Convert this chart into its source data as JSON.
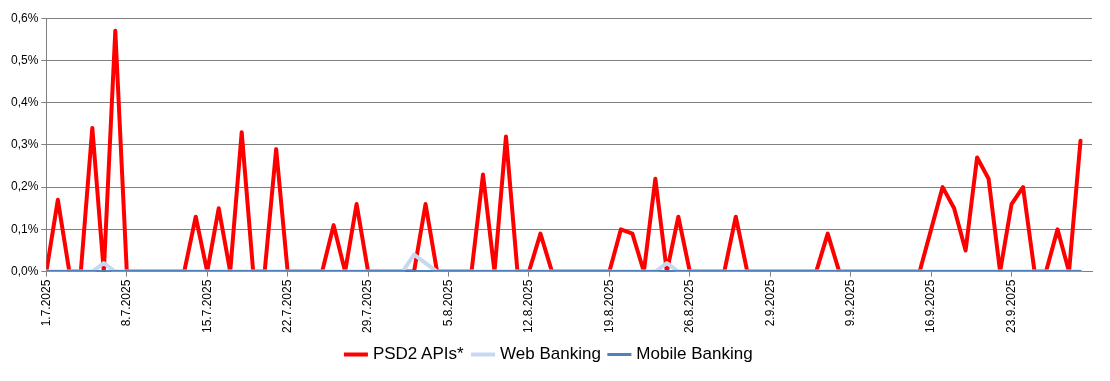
{
  "chart_data": {
    "type": "line",
    "x": [
      "2025-07-01",
      "2025-07-02",
      "2025-07-03",
      "2025-07-04",
      "2025-07-05",
      "2025-07-06",
      "2025-07-07",
      "2025-07-08",
      "2025-07-09",
      "2025-07-10",
      "2025-07-11",
      "2025-07-12",
      "2025-07-13",
      "2025-07-14",
      "2025-07-15",
      "2025-07-16",
      "2025-07-17",
      "2025-07-18",
      "2025-07-19",
      "2025-07-20",
      "2025-07-21",
      "2025-07-22",
      "2025-07-23",
      "2025-07-24",
      "2025-07-25",
      "2025-07-26",
      "2025-07-27",
      "2025-07-28",
      "2025-07-29",
      "2025-07-30",
      "2025-07-31",
      "2025-08-01",
      "2025-08-02",
      "2025-08-03",
      "2025-08-04",
      "2025-08-05",
      "2025-08-06",
      "2025-08-07",
      "2025-08-08",
      "2025-08-09",
      "2025-08-10",
      "2025-08-11",
      "2025-08-12",
      "2025-08-13",
      "2025-08-14",
      "2025-08-15",
      "2025-08-16",
      "2025-08-17",
      "2025-08-18",
      "2025-08-19",
      "2025-08-20",
      "2025-08-21",
      "2025-08-22",
      "2025-08-23",
      "2025-08-24",
      "2025-08-25",
      "2025-08-26",
      "2025-08-27",
      "2025-08-28",
      "2025-08-29",
      "2025-08-30",
      "2025-08-31",
      "2025-09-01",
      "2025-09-02",
      "2025-09-03",
      "2025-09-04",
      "2025-09-05",
      "2025-09-06",
      "2025-09-07",
      "2025-09-08",
      "2025-09-09",
      "2025-09-10",
      "2025-09-11",
      "2025-09-12",
      "2025-09-13",
      "2025-09-14",
      "2025-09-15",
      "2025-09-16",
      "2025-09-17",
      "2025-09-18",
      "2025-09-19",
      "2025-09-20",
      "2025-09-21",
      "2025-09-22",
      "2025-09-23",
      "2025-09-24",
      "2025-09-25",
      "2025-09-26",
      "2025-09-27",
      "2025-09-28",
      "2025-09-29"
    ],
    "series": [
      {
        "name": "PSD2 APIs*",
        "color": "#ff0000",
        "values": [
          0,
          0.17,
          0,
          0,
          0.34,
          0,
          0.57,
          0,
          0,
          0,
          0,
          0,
          0,
          0.13,
          0,
          0.15,
          0,
          0.33,
          0,
          0,
          0.29,
          0,
          0,
          0,
          0,
          0.11,
          0,
          0.16,
          0,
          0,
          0,
          0,
          0,
          0.16,
          0,
          0,
          0,
          0,
          0.23,
          0,
          0.32,
          0,
          0,
          0.09,
          0,
          0,
          0,
          0,
          0,
          0,
          0.1,
          0.09,
          0,
          0.22,
          0,
          0.13,
          0,
          0,
          0,
          0,
          0.13,
          0,
          0,
          0,
          0,
          0,
          0,
          0,
          0.09,
          0,
          0,
          0,
          0,
          0,
          0,
          0,
          0,
          0.1,
          0.2,
          0.15,
          0.05,
          0.27,
          0.22,
          0,
          0.16,
          0.2,
          0,
          0,
          0.1,
          0,
          0.31
        ]
      },
      {
        "name": "Web Banking",
        "color": "#c6d9f1",
        "values": [
          0,
          0,
          0,
          0,
          0,
          0.02,
          0,
          0,
          0,
          0,
          0,
          0,
          0,
          0,
          0,
          0,
          0,
          0,
          0,
          0,
          0,
          0,
          0,
          0,
          0,
          0,
          0,
          0,
          0,
          0,
          0,
          0,
          0.04,
          0.02,
          0,
          0,
          0,
          0,
          0,
          0,
          0,
          0,
          0,
          0,
          0,
          0,
          0,
          0,
          0,
          0,
          0,
          0,
          0,
          0,
          0.02,
          0,
          0,
          0,
          0,
          0,
          0,
          0,
          0,
          0,
          0,
          0,
          0,
          0,
          0,
          0,
          0,
          0,
          0,
          0,
          0,
          0,
          0,
          0,
          0,
          0,
          0,
          0,
          0,
          0,
          0,
          0,
          0,
          0,
          0,
          0,
          0
        ]
      },
      {
        "name": "Mobile Banking",
        "color": "#4f81bd",
        "values": [
          0,
          0,
          0,
          0,
          0,
          0,
          0,
          0,
          0,
          0,
          0,
          0,
          0,
          0,
          0,
          0,
          0,
          0,
          0,
          0,
          0,
          0,
          0,
          0,
          0,
          0,
          0,
          0,
          0,
          0,
          0,
          0,
          0,
          0,
          0,
          0,
          0,
          0,
          0,
          0,
          0,
          0,
          0,
          0,
          0,
          0,
          0,
          0,
          0,
          0,
          0,
          0,
          0,
          0,
          0,
          0,
          0,
          0,
          0,
          0,
          0,
          0,
          0,
          0,
          0,
          0,
          0,
          0,
          0,
          0,
          0,
          0,
          0,
          0,
          0,
          0,
          0,
          0,
          0,
          0,
          0,
          0,
          0,
          0,
          0,
          0,
          0,
          0,
          0,
          0,
          0
        ]
      }
    ],
    "xlim": [
      "2025-07-01",
      "2025-09-30"
    ],
    "xticks": [
      {
        "value": "2025-07-01",
        "label": "1.7.2025"
      },
      {
        "value": "2025-07-08",
        "label": "8.7.2025"
      },
      {
        "value": "2025-07-15",
        "label": "15.7.2025"
      },
      {
        "value": "2025-07-22",
        "label": "22.7.2025"
      },
      {
        "value": "2025-07-29",
        "label": "29.7.2025"
      },
      {
        "value": "2025-08-05",
        "label": "5.8.2025"
      },
      {
        "value": "2025-08-12",
        "label": "12.8.2025"
      },
      {
        "value": "2025-08-19",
        "label": "19.8.2025"
      },
      {
        "value": "2025-08-26",
        "label": "26.8.2025"
      },
      {
        "value": "2025-09-02",
        "label": "2.9.2025"
      },
      {
        "value": "2025-09-09",
        "label": "9.9.2025"
      },
      {
        "value": "2025-09-16",
        "label": "16.9.2025"
      },
      {
        "value": "2025-09-23",
        "label": "23.9.2025"
      }
    ],
    "ylim": [
      0,
      0.6
    ],
    "yticks": [
      {
        "value": 0,
        "label": "0,0%"
      },
      {
        "value": 0.1,
        "label": "0,1%"
      },
      {
        "value": 0.2,
        "label": "0,2%"
      },
      {
        "value": 0.3,
        "label": "0,3%"
      },
      {
        "value": 0.4,
        "label": "0,4%"
      },
      {
        "value": 0.5,
        "label": "0,5%"
      },
      {
        "value": 0.6,
        "label": "0,6%"
      }
    ],
    "grid": "y",
    "legend": "bottom",
    "marker": "none",
    "line_style": "solid"
  }
}
